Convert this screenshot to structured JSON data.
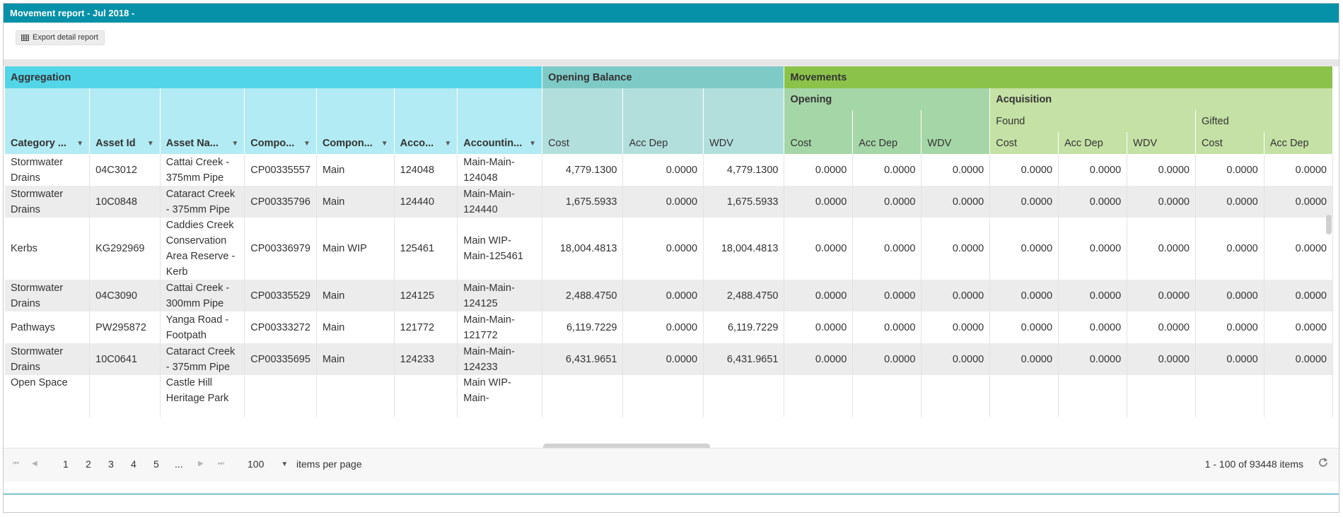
{
  "window": {
    "title": "Movement report - Jul 2018 -"
  },
  "toolbar": {
    "export_label": "Export detail report"
  },
  "groups": {
    "aggregation": "Aggregation",
    "opening_balance": "Opening Balance",
    "movements": "Movements",
    "opening": "Opening",
    "acquisition": "Acquisition",
    "found": "Found",
    "gifted": "Gifted"
  },
  "columns": {
    "category": "Category ...",
    "asset_id": "Asset Id",
    "asset_name": "Asset Na...",
    "component_id": "Compo...",
    "component": "Compon...",
    "account": "Acco...",
    "accounting": "Accountin...",
    "ob_cost": "Cost",
    "ob_accdep": "Acc Dep",
    "ob_wdv": "WDV",
    "op_cost": "Cost",
    "op_accdep": "Acc Dep",
    "op_wdv": "WDV",
    "found_cost": "Cost",
    "found_accdep": "Acc Dep",
    "found_wdv": "WDV",
    "gifted_cost": "Cost",
    "gifted_accdep": "Acc Dep"
  },
  "rows": [
    {
      "category": "Stormwater Drains",
      "asset_id": "04C3012",
      "asset_name": "Cattai Creek - 375mm Pipe",
      "component_id": "CP00335557",
      "component": "Main",
      "account": "124048",
      "accounting": "Main-Main-124048",
      "ob_cost": "4,779.1300",
      "ob_accdep": "0.0000",
      "ob_wdv": "4,779.1300",
      "op_cost": "0.0000",
      "op_accdep": "0.0000",
      "op_wdv": "0.0000",
      "found_cost": "0.0000",
      "found_accdep": "0.0000",
      "found_wdv": "0.0000",
      "gifted_cost": "0.0000",
      "gifted_accdep": "0.0000"
    },
    {
      "category": "Stormwater Drains",
      "asset_id": "10C0848",
      "asset_name": "Cataract Creek - 375mm Pipe",
      "component_id": "CP00335796",
      "component": "Main",
      "account": "124440",
      "accounting": "Main-Main-124440",
      "ob_cost": "1,675.5933",
      "ob_accdep": "0.0000",
      "ob_wdv": "1,675.5933",
      "op_cost": "0.0000",
      "op_accdep": "0.0000",
      "op_wdv": "0.0000",
      "found_cost": "0.0000",
      "found_accdep": "0.0000",
      "found_wdv": "0.0000",
      "gifted_cost": "0.0000",
      "gifted_accdep": "0.0000"
    },
    {
      "category": "Kerbs",
      "asset_id": "KG292969",
      "asset_name": "Caddies Creek Conservation Area Reserve - Kerb",
      "component_id": "CP00336979",
      "component": "Main WIP",
      "account": "125461",
      "accounting": "Main WIP-Main-125461",
      "ob_cost": "18,004.4813",
      "ob_accdep": "0.0000",
      "ob_wdv": "18,004.4813",
      "op_cost": "0.0000",
      "op_accdep": "0.0000",
      "op_wdv": "0.0000",
      "found_cost": "0.0000",
      "found_accdep": "0.0000",
      "found_wdv": "0.0000",
      "gifted_cost": "0.0000",
      "gifted_accdep": "0.0000"
    },
    {
      "category": "Stormwater Drains",
      "asset_id": "04C3090",
      "asset_name": "Cattai Creek - 300mm Pipe",
      "component_id": "CP00335529",
      "component": "Main",
      "account": "124125",
      "accounting": "Main-Main-124125",
      "ob_cost": "2,488.4750",
      "ob_accdep": "0.0000",
      "ob_wdv": "2,488.4750",
      "op_cost": "0.0000",
      "op_accdep": "0.0000",
      "op_wdv": "0.0000",
      "found_cost": "0.0000",
      "found_accdep": "0.0000",
      "found_wdv": "0.0000",
      "gifted_cost": "0.0000",
      "gifted_accdep": "0.0000"
    },
    {
      "category": "Pathways",
      "asset_id": "PW295872",
      "asset_name": "Yanga Road - Footpath",
      "component_id": "CP00333272",
      "component": "Main",
      "account": "121772",
      "accounting": "Main-Main-121772",
      "ob_cost": "6,119.7229",
      "ob_accdep": "0.0000",
      "ob_wdv": "6,119.7229",
      "op_cost": "0.0000",
      "op_accdep": "0.0000",
      "op_wdv": "0.0000",
      "found_cost": "0.0000",
      "found_accdep": "0.0000",
      "found_wdv": "0.0000",
      "gifted_cost": "0.0000",
      "gifted_accdep": "0.0000"
    },
    {
      "category": "Stormwater Drains",
      "asset_id": "10C0641",
      "asset_name": "Cataract Creek - 375mm Pipe",
      "component_id": "CP00335695",
      "component": "Main",
      "account": "124233",
      "accounting": "Main-Main-124233",
      "ob_cost": "6,431.9651",
      "ob_accdep": "0.0000",
      "ob_wdv": "6,431.9651",
      "op_cost": "0.0000",
      "op_accdep": "0.0000",
      "op_wdv": "0.0000",
      "found_cost": "0.0000",
      "found_accdep": "0.0000",
      "found_wdv": "0.0000",
      "gifted_cost": "0.0000",
      "gifted_accdep": "0.0000"
    },
    {
      "category": "Open Space",
      "asset_id": "",
      "asset_name": "Castle Hill Heritage Park",
      "component_id": "",
      "component": "",
      "account": "",
      "accounting": "Main WIP-Main-",
      "ob_cost": "",
      "ob_accdep": "",
      "ob_wdv": "",
      "op_cost": "",
      "op_accdep": "",
      "op_wdv": "",
      "found_cost": "",
      "found_accdep": "",
      "found_wdv": "",
      "gifted_cost": "",
      "gifted_accdep": ""
    }
  ],
  "pager": {
    "pages": [
      "1",
      "2",
      "3",
      "4",
      "5",
      "..."
    ],
    "page_size": "100",
    "items_per_page_label": "items per page",
    "info": "1 - 100 of 93448 items"
  }
}
